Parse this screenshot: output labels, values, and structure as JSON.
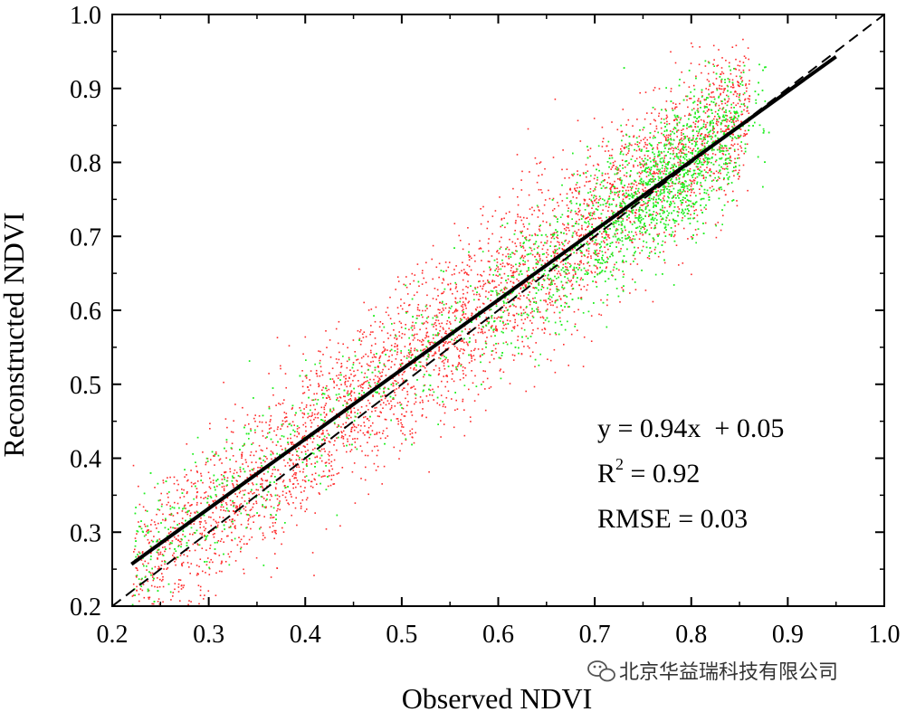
{
  "chart_data": {
    "type": "scatter",
    "title": "",
    "xlabel": "Observed NDVI",
    "ylabel": "Reconstructed NDVI",
    "xlim": [
      0.2,
      1.0
    ],
    "ylim": [
      0.2,
      1.0
    ],
    "xticks": [
      "0.2",
      "0.3",
      "0.4",
      "0.5",
      "0.6",
      "0.7",
      "0.8",
      "0.9",
      "1.0"
    ],
    "yticks": [
      "0.2",
      "0.3",
      "0.4",
      "0.5",
      "0.6",
      "0.7",
      "0.8",
      "0.9",
      "1.0"
    ],
    "series": [
      {
        "color": "#ff2a2a",
        "x_range": [
          0.22,
          0.86
        ],
        "regression": {
          "slope": 1.0,
          "intercept": 0.02,
          "spread": 0.055
        },
        "n_points": 4000
      },
      {
        "color": "#22ee22",
        "x_range": [
          0.22,
          0.88
        ],
        "density_peak_x": 0.82,
        "regression": {
          "slope": 0.94,
          "intercept": 0.05,
          "spread": 0.045
        },
        "n_points": 5000
      }
    ],
    "fit_line": {
      "slope": 0.94,
      "intercept": 0.05,
      "x_range": [
        0.22,
        0.95
      ],
      "color": "#000000",
      "style": "solid"
    },
    "identity_line": {
      "x_range": [
        0.2,
        1.0
      ],
      "color": "#000000",
      "style": "dashed"
    },
    "annotations": {
      "equation": "y = 0.94x  + 0.05",
      "r2_label": "R",
      "r2_sup": "2",
      "r2_value": " = 0.92",
      "rmse": "RMSE = 0.03"
    },
    "grid": false,
    "legend": "none"
  },
  "watermark": {
    "icon": "wechat-icon",
    "text": "北京华益瑞科技有限公司"
  }
}
